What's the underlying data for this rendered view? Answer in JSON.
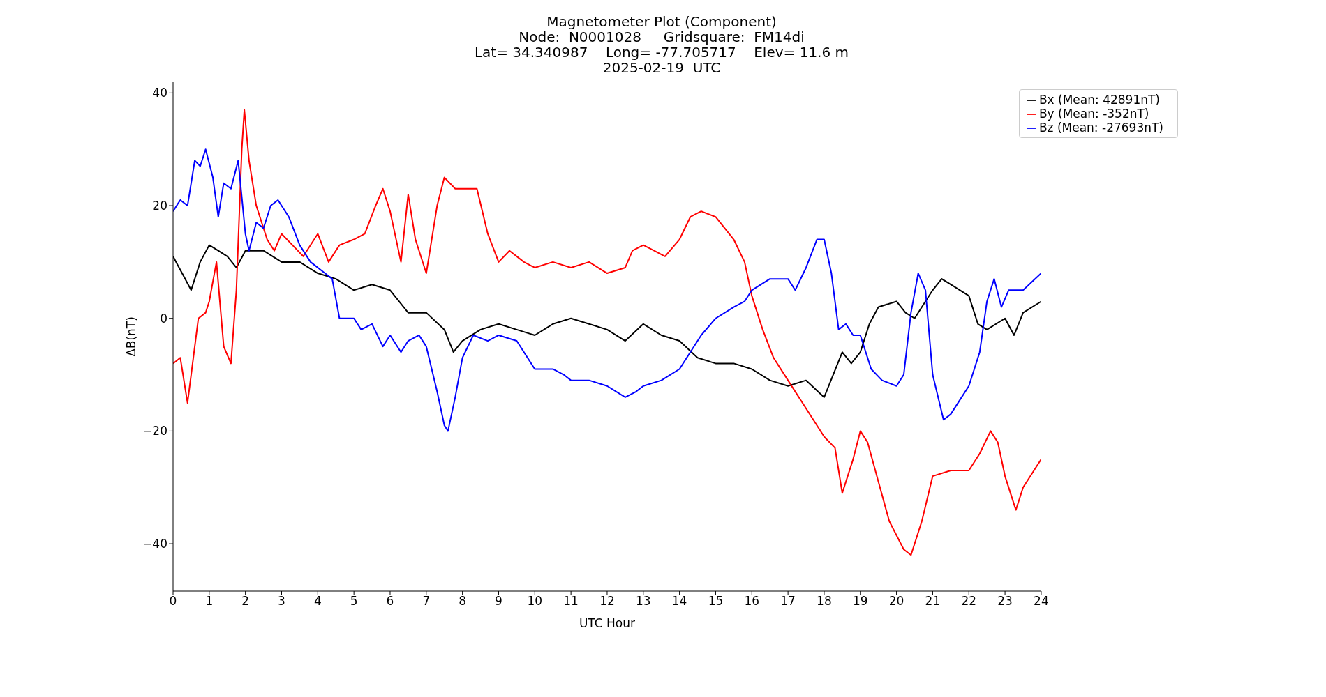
{
  "chart_data": {
    "type": "line",
    "title": "Magnetometer Plot (Component)",
    "subtitle": "Node:  N0001028     Gridsquare:  FM14di\nLat= 34.340987    Long= -77.705717    Elev= 11.6 m\n2025-02-19  UTC",
    "xlabel": "UTC Hour",
    "ylabel": "ΔB(nT)",
    "xlim": [
      0,
      24
    ],
    "xticks": [
      0,
      1,
      2,
      3,
      4,
      5,
      6,
      7,
      8,
      9,
      10,
      11,
      12,
      13,
      14,
      15,
      16,
      17,
      18,
      19,
      20,
      21,
      22,
      23,
      24
    ],
    "ylim": [
      -48.4,
      41.9
    ],
    "yticks": [
      -40,
      -20,
      0,
      20,
      40
    ],
    "grid": false,
    "legend": "top right",
    "marker": "none",
    "line_style": "solid",
    "series": [
      {
        "name": "Bx (Mean: 42891nT)",
        "color": "#000000",
        "x": [
          0,
          0.25,
          0.5,
          0.75,
          1,
          1.25,
          1.5,
          1.75,
          2,
          2.5,
          3,
          3.5,
          4,
          4.5,
          5,
          5.5,
          6,
          6.5,
          7,
          7.5,
          7.75,
          8,
          8.5,
          9,
          9.5,
          10,
          10.5,
          11,
          11.5,
          12,
          12.5,
          13,
          13.5,
          14,
          14.5,
          15,
          15.5,
          16,
          16.5,
          17,
          17.5,
          18,
          18.25,
          18.5,
          18.75,
          19,
          19.25,
          19.5,
          20,
          20.25,
          20.5,
          21,
          21.25,
          21.5,
          22,
          22.25,
          22.5,
          23,
          23.25,
          23.5,
          24
        ],
        "values": [
          11,
          8,
          5,
          10,
          13,
          12,
          11,
          9,
          12,
          12,
          10,
          10,
          8,
          7,
          5,
          6,
          5,
          1,
          1,
          -2,
          -6,
          -4,
          -2,
          -1,
          -2,
          -3,
          -1,
          0,
          -1,
          -2,
          -4,
          -1,
          -3,
          -4,
          -7,
          -8,
          -8,
          -9,
          -11,
          -12,
          -11,
          -14,
          -10,
          -6,
          -8,
          -6,
          -1,
          2,
          3,
          1,
          0,
          5,
          7,
          6,
          4,
          -1,
          -2,
          0,
          -3,
          1,
          3
        ]
      },
      {
        "name": "By (Mean: -352nT)",
        "color": "#ff0000",
        "x": [
          0,
          0.2,
          0.4,
          0.5,
          0.7,
          0.9,
          1,
          1.2,
          1.4,
          1.6,
          1.75,
          1.9,
          1.97,
          2.1,
          2.3,
          2.6,
          2.8,
          3,
          3.3,
          3.6,
          4,
          4.3,
          4.6,
          5,
          5.3,
          5.6,
          5.8,
          6,
          6.3,
          6.5,
          6.7,
          7,
          7.3,
          7.5,
          7.8,
          8,
          8.4,
          8.7,
          9,
          9.3,
          9.7,
          10,
          10.5,
          11,
          11.5,
          12,
          12.5,
          12.7,
          13,
          13.3,
          13.6,
          14,
          14.3,
          14.6,
          15,
          15.5,
          15.8,
          16,
          16.3,
          16.6,
          17,
          17.5,
          18,
          18.3,
          18.5,
          18.8,
          19,
          19.2,
          19.5,
          19.8,
          20.2,
          20.4,
          20.7,
          21,
          21.5,
          22,
          22.3,
          22.6,
          22.8,
          23,
          23.3,
          23.5,
          24
        ],
        "values": [
          -8,
          -7,
          -15,
          -10,
          0,
          1,
          3,
          10,
          -5,
          -8,
          5,
          30,
          37,
          28,
          20,
          14,
          12,
          15,
          13,
          11,
          15,
          10,
          13,
          14,
          15,
          20,
          23,
          19,
          10,
          22,
          14,
          8,
          20,
          25,
          23,
          23,
          23,
          15,
          10,
          12,
          10,
          9,
          10,
          9,
          10,
          8,
          9,
          12,
          13,
          12,
          11,
          14,
          18,
          19,
          18,
          14,
          10,
          4,
          -2,
          -7,
          -11,
          -16,
          -21,
          -23,
          -31,
          -25,
          -20,
          -22,
          -29,
          -36,
          -41,
          -42,
          -36,
          -28,
          -27,
          -27,
          -24,
          -20,
          -22,
          -28,
          -34,
          -30,
          -25
        ]
      },
      {
        "name": "Bz (Mean: -27693nT)",
        "color": "#0000ff",
        "x": [
          0,
          0.2,
          0.4,
          0.6,
          0.75,
          0.9,
          1.1,
          1.25,
          1.4,
          1.6,
          1.8,
          2,
          2.1,
          2.3,
          2.5,
          2.7,
          2.9,
          3.2,
          3.5,
          3.8,
          4.2,
          4.4,
          4.6,
          4.8,
          5,
          5.2,
          5.5,
          5.8,
          6,
          6.3,
          6.5,
          6.8,
          7,
          7.3,
          7.5,
          7.6,
          7.8,
          8,
          8.3,
          8.7,
          9,
          9.5,
          10,
          10.5,
          10.8,
          11,
          11.5,
          12,
          12.5,
          12.8,
          13,
          13.5,
          14,
          14.3,
          14.6,
          15,
          15.5,
          15.8,
          16,
          16.5,
          17,
          17.2,
          17.5,
          17.8,
          18,
          18.2,
          18.4,
          18.6,
          18.8,
          19,
          19.3,
          19.6,
          20,
          20.2,
          20.4,
          20.6,
          20.8,
          21,
          21.3,
          21.5,
          21.8,
          22,
          22.3,
          22.5,
          22.7,
          22.9,
          23.1,
          23.5,
          24
        ],
        "values": [
          19,
          21,
          20,
          28,
          27,
          30,
          25,
          18,
          24,
          23,
          28,
          15,
          12,
          17,
          16,
          20,
          21,
          18,
          13,
          10,
          8,
          7,
          0,
          0,
          0,
          -2,
          -1,
          -5,
          -3,
          -6,
          -4,
          -3,
          -5,
          -13,
          -19,
          -20,
          -14,
          -7,
          -3,
          -4,
          -3,
          -4,
          -9,
          -9,
          -10,
          -11,
          -11,
          -12,
          -14,
          -13,
          -12,
          -11,
          -9,
          -6,
          -3,
          0,
          2,
          3,
          5,
          7,
          7,
          5,
          9,
          14,
          14,
          8,
          -2,
          -1,
          -3,
          -3,
          -9,
          -11,
          -12,
          -10,
          1,
          8,
          5,
          -10,
          -18,
          -17,
          -14,
          -12,
          -6,
          3,
          7,
          2,
          5,
          5,
          8
        ]
      }
    ]
  }
}
